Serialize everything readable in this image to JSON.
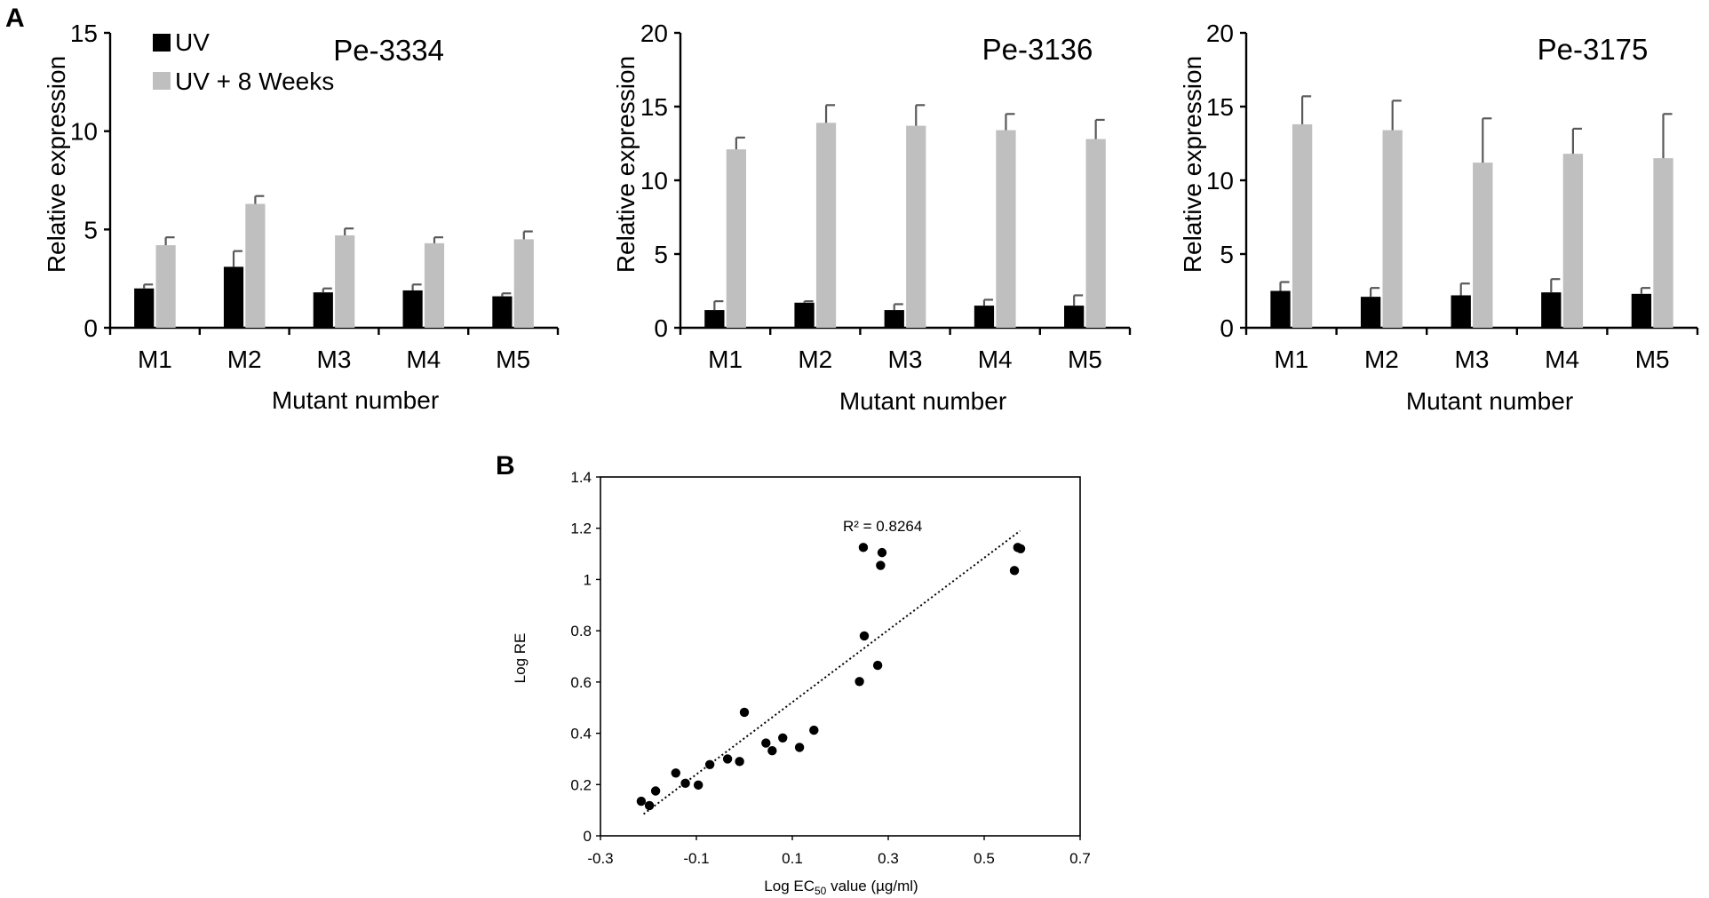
{
  "panel_labels": {
    "a": "A",
    "b": "B"
  },
  "colors": {
    "uv": "#000000",
    "uv8": "#bfbfbf",
    "error": "#595959",
    "point": "#000000"
  },
  "chart_data": [
    {
      "type": "bar",
      "title": "Pe-3334",
      "xlabel": "Mutant number",
      "ylabel": "Relative expression",
      "ylim": [
        0,
        15
      ],
      "yticks": [
        0,
        5,
        10,
        15
      ],
      "categories": [
        "M1",
        "M2",
        "M3",
        "M4",
        "M5"
      ],
      "legend": {
        "position": "top-left",
        "entries": [
          "UV",
          "UV + 8 Weeks"
        ]
      },
      "series": [
        {
          "name": "UV",
          "values": [
            2.0,
            3.1,
            1.8,
            1.9,
            1.6
          ],
          "errors": [
            0.2,
            0.8,
            0.2,
            0.3,
            0.15
          ]
        },
        {
          "name": "UV + 8 Weeks",
          "values": [
            4.2,
            6.3,
            4.7,
            4.3,
            4.5
          ],
          "errors": [
            0.4,
            0.4,
            0.35,
            0.3,
            0.4
          ]
        }
      ]
    },
    {
      "type": "bar",
      "title": "Pe-3136",
      "xlabel": "Mutant number",
      "ylabel": "Relative expression",
      "ylim": [
        0,
        20
      ],
      "yticks": [
        0,
        5,
        10,
        15,
        20
      ],
      "categories": [
        "M1",
        "M2",
        "M3",
        "M4",
        "M5"
      ],
      "series": [
        {
          "name": "UV",
          "values": [
            1.2,
            1.7,
            1.2,
            1.5,
            1.5
          ],
          "errors": [
            0.6,
            0.1,
            0.4,
            0.4,
            0.7
          ]
        },
        {
          "name": "UV + 8 Weeks",
          "values": [
            12.1,
            13.9,
            13.7,
            13.4,
            12.8
          ],
          "errors": [
            0.8,
            1.2,
            1.4,
            1.1,
            1.3
          ]
        }
      ]
    },
    {
      "type": "bar",
      "title": "Pe-3175",
      "xlabel": "Mutant number",
      "ylabel": "Relative expression",
      "ylim": [
        0,
        20
      ],
      "yticks": [
        0,
        5,
        10,
        15,
        20
      ],
      "categories": [
        "M1",
        "M2",
        "M3",
        "M4",
        "M5"
      ],
      "series": [
        {
          "name": "UV",
          "values": [
            2.5,
            2.1,
            2.2,
            2.4,
            2.3
          ],
          "errors": [
            0.6,
            0.6,
            0.8,
            0.9,
            0.4
          ]
        },
        {
          "name": "UV + 8 Weeks",
          "values": [
            13.8,
            13.4,
            11.2,
            11.8,
            11.5
          ],
          "errors": [
            1.9,
            2.0,
            3.0,
            1.7,
            3.0
          ]
        }
      ]
    },
    {
      "type": "scatter",
      "xlabel_prefix": "Log EC",
      "xlabel_sub": "50",
      "xlabel_suffix": " value (µg/ml)",
      "ylabel": "Log RE",
      "xlim": [
        -0.3,
        0.7
      ],
      "ylim": [
        0,
        1.4
      ],
      "xticks": [
        "-0.3",
        "-0.1",
        "0.1",
        "0.3",
        "0.5",
        "0.7"
      ],
      "yticks": [
        "0",
        "0.2",
        "0.4",
        "0.6",
        "0.8",
        "1",
        "1.2",
        "1.4"
      ],
      "annotation": "R² = 0.8264",
      "trendline": {
        "style": "dotted",
        "x": [
          -0.21,
          0.575
        ],
        "y": [
          0.085,
          1.19
        ]
      },
      "points": [
        [
          -0.215,
          0.135
        ],
        [
          -0.198,
          0.118
        ],
        [
          -0.185,
          0.175
        ],
        [
          -0.143,
          0.245
        ],
        [
          -0.123,
          0.205
        ],
        [
          -0.096,
          0.198
        ],
        [
          -0.072,
          0.278
        ],
        [
          -0.035,
          0.3
        ],
        [
          -0.01,
          0.29
        ],
        [
          0.0,
          0.482
        ],
        [
          0.045,
          0.362
        ],
        [
          0.058,
          0.332
        ],
        [
          0.08,
          0.382
        ],
        [
          0.115,
          0.345
        ],
        [
          0.145,
          0.412
        ],
        [
          0.24,
          0.602
        ],
        [
          0.25,
          0.78
        ],
        [
          0.278,
          0.665
        ],
        [
          0.248,
          1.125
        ],
        [
          0.284,
          1.055
        ],
        [
          0.287,
          1.105
        ],
        [
          0.563,
          1.035
        ],
        [
          0.57,
          1.125
        ],
        [
          0.576,
          1.12
        ]
      ]
    }
  ]
}
